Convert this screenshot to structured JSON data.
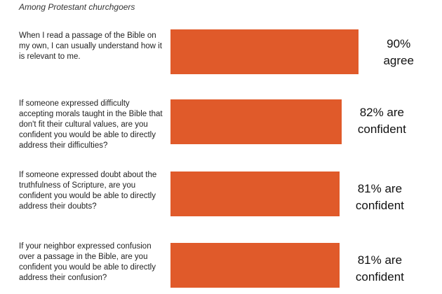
{
  "subtitle": "Among Protestant churchgoers",
  "colors": {
    "bar": "#e05a2a"
  },
  "chart_data": {
    "type": "bar",
    "orientation": "horizontal",
    "title": "",
    "subtitle": "Among Protestant churchgoers",
    "categories": [
      "When I read a passage of the Bible on my own, I can usually understand how it is relevant to me.",
      "If someone expressed difficulty accepting morals taught in the Bible that don't fit their cultural values, are you confident you would be able to directly address their difficulties?",
      "If someone expressed doubt about the truthfulness of Scripture, are you confident you would be able to directly address their doubts?",
      "If your neighbor expressed confusion over a passage in the Bible, are you confident you would be able to directly address their confusion?"
    ],
    "values": [
      90,
      82,
      81,
      81
    ],
    "value_labels": [
      [
        "90%",
        "agree"
      ],
      [
        "82% are",
        "confident"
      ],
      [
        "81% are",
        "confident"
      ],
      [
        "81% are",
        "confident"
      ]
    ],
    "unit": "%",
    "xlim": [
      0,
      100
    ],
    "grid": false,
    "legend": "none"
  }
}
